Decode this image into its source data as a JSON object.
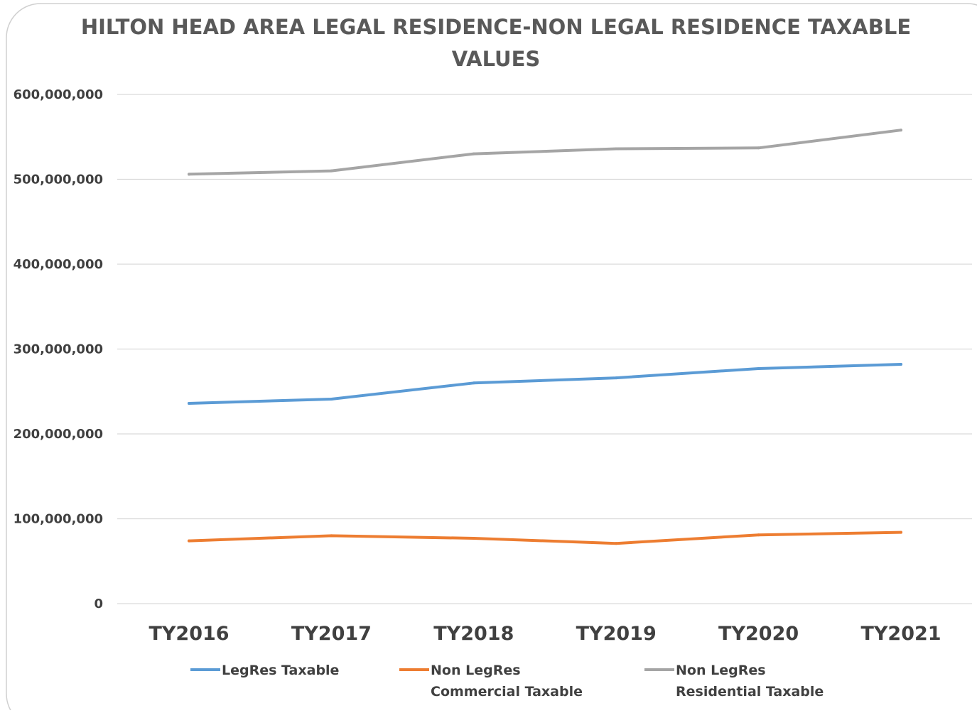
{
  "chart_data": {
    "type": "line",
    "title_lines": [
      "HILTON HEAD AREA LEGAL RESIDENCE-NON LEGAL RESIDENCE TAXABLE",
      "VALUES"
    ],
    "xlabel": "",
    "ylabel": "",
    "categories": [
      "TY2016",
      "TY2017",
      "TY2018",
      "TY2019",
      "TY2020",
      "TY2021"
    ],
    "ylim": [
      0,
      600000000
    ],
    "yticks": [
      0,
      100000000,
      200000000,
      300000000,
      400000000,
      500000000,
      600000000
    ],
    "ytick_labels": [
      "0",
      "100,000,000",
      "200,000,000",
      "300,000,000",
      "400,000,000",
      "500,000,000",
      "600,000,000"
    ],
    "grid": true,
    "legend_position": "bottom",
    "series": [
      {
        "name": "LegRes Taxable",
        "legend_lines": [
          "LegRes Taxable"
        ],
        "color": "#5B9BD5",
        "values": [
          236000000,
          241000000,
          260000000,
          266000000,
          277000000,
          282000000
        ]
      },
      {
        "name": "Non LegRes Commercial Taxable",
        "legend_lines": [
          "Non LegRes",
          "Commercial Taxable"
        ],
        "color": "#ED7D31",
        "values": [
          74000000,
          80000000,
          77000000,
          71000000,
          81000000,
          84000000
        ]
      },
      {
        "name": "Non LegRes Residential Taxable",
        "legend_lines": [
          "Non LegRes",
          "Residential Taxable"
        ],
        "color": "#A5A5A5",
        "values": [
          506000000,
          510000000,
          530000000,
          536000000,
          537000000,
          558000000
        ]
      }
    ]
  }
}
